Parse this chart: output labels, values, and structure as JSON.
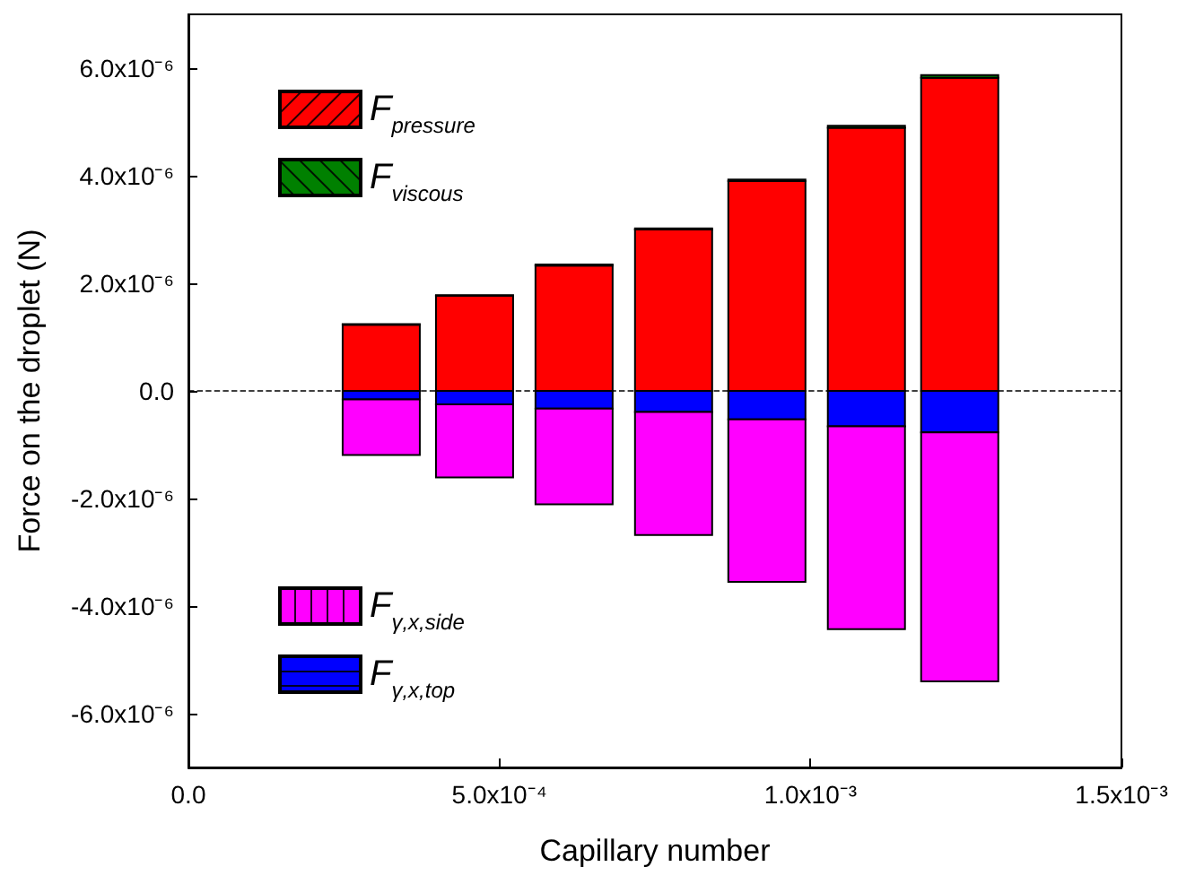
{
  "chart_data": {
    "type": "bar",
    "stacked": true,
    "xlabel": "Capillary number",
    "ylabel": "Force on the droplet (N)",
    "x": [
      0.00031,
      0.00046,
      0.00062,
      0.00078,
      0.00093,
      0.00109,
      0.00124
    ],
    "series": [
      {
        "name": "F$_{pressure}$",
        "color": "#ff0000",
        "values": [
          1.23e-06,
          1.77e-06,
          2.33e-06,
          3e-06,
          3.9e-06,
          4.89e-06,
          5.82e-06
        ]
      },
      {
        "name": "F$_{viscous}$",
        "color": "#008000",
        "values": [
          1e-08,
          1e-08,
          2e-08,
          2e-08,
          3e-08,
          4e-08,
          5e-08
        ]
      },
      {
        "name": "F$_{γ,x,top}$",
        "color": "#0000ff",
        "values": [
          -1.6e-07,
          -2.5e-07,
          -3.3e-07,
          -3.9e-07,
          -5.3e-07,
          -6.6e-07,
          -7.7e-07
        ]
      },
      {
        "name": "F$_{γ,x,side}$",
        "color": "#ff00ff",
        "values": [
          -1.03e-06,
          -1.36e-06,
          -1.78e-06,
          -2.29e-06,
          -3.02e-06,
          -3.77e-06,
          -4.63e-06
        ]
      }
    ],
    "xlim": [
      0,
      0.0015
    ],
    "xticks": [
      {
        "value": 0,
        "label": "0.0"
      },
      {
        "value": 0.0005,
        "label": "5.0x10⁻⁴"
      },
      {
        "value": 0.001,
        "label": "1.0x10⁻³"
      },
      {
        "value": 0.0015,
        "label": "1.5x10⁻³"
      }
    ],
    "ylim": [
      -7e-06,
      7e-06
    ],
    "yticks": [
      {
        "value": -6e-06,
        "label": "-6.0x10⁻⁶"
      },
      {
        "value": -4e-06,
        "label": "-4.0x10⁻⁶"
      },
      {
        "value": -2e-06,
        "label": "-2.0x10⁻⁶"
      },
      {
        "value": 0,
        "label": "0.0"
      },
      {
        "value": 2e-06,
        "label": "2.0x10⁻⁶"
      },
      {
        "value": 4e-06,
        "label": "4.0x10⁻⁶"
      },
      {
        "value": 6e-06,
        "label": "6.0x10⁻⁶"
      }
    ],
    "ref_lines": [
      {
        "axis": "y",
        "value": 0,
        "label": null,
        "color": "#000000",
        "line_style": "dashed"
      }
    ],
    "grid": false,
    "legend": "left"
  }
}
